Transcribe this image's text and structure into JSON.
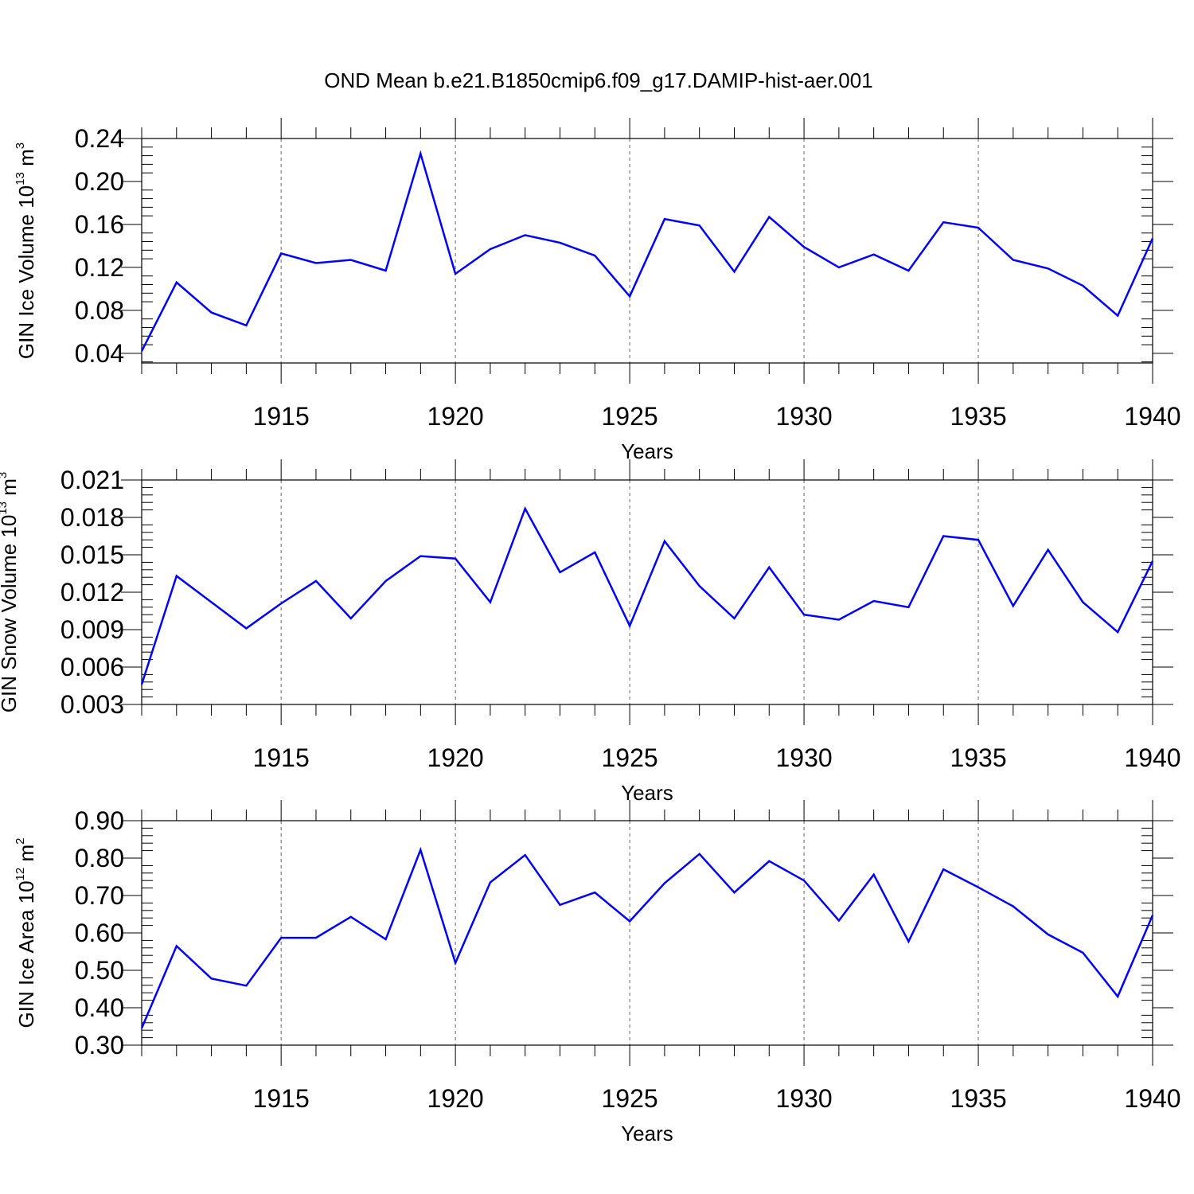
{
  "title": "OND Mean b.e21.B1850cmip6.f09_g17.DAMIP-hist-aer.001",
  "line_color": "#0000ff",
  "chart_data": [
    {
      "type": "line",
      "ylabel": {
        "base": "GIN Ice Volume 10",
        "exp": "13",
        "unit": " m",
        "unit_exp": "3"
      },
      "xlabel": "Years",
      "xlim": [
        1911,
        1940
      ],
      "ylim": [
        0.031,
        0.24
      ],
      "yticks": [
        0.04,
        0.08,
        0.12,
        0.16,
        0.2,
        0.24
      ],
      "ytick_labels": [
        "0.04",
        "0.08",
        "0.12",
        "0.16",
        "0.20",
        "0.24"
      ],
      "xticks": [
        1915,
        1920,
        1925,
        1930,
        1935,
        1940
      ],
      "xtick_labels": [
        "1915",
        "1920",
        "1925",
        "1930",
        "1935",
        "1940"
      ],
      "grid": "vertical dashed at major x ticks",
      "x": [
        1911,
        1912,
        1913,
        1914,
        1915,
        1916,
        1917,
        1918,
        1919,
        1920,
        1921,
        1922,
        1923,
        1924,
        1925,
        1926,
        1927,
        1928,
        1929,
        1930,
        1931,
        1932,
        1933,
        1934,
        1935,
        1936,
        1937,
        1938,
        1939,
        1940
      ],
      "values": [
        0.042,
        0.106,
        0.078,
        0.066,
        0.133,
        0.124,
        0.127,
        0.117,
        0.226,
        0.114,
        0.137,
        0.15,
        0.143,
        0.131,
        0.093,
        0.165,
        0.159,
        0.116,
        0.167,
        0.139,
        0.12,
        0.132,
        0.117,
        0.162,
        0.157,
        0.127,
        0.119,
        0.103,
        0.075,
        0.147
      ]
    },
    {
      "type": "line",
      "ylabel": {
        "base": "GIN Snow Volume 10",
        "exp": "13",
        "unit": " m",
        "unit_exp": "3"
      },
      "xlabel": "Years",
      "xlim": [
        1911,
        1940
      ],
      "ylim": [
        0.003,
        0.021
      ],
      "yticks": [
        0.003,
        0.006,
        0.009,
        0.012,
        0.015,
        0.018,
        0.021
      ],
      "ytick_labels": [
        "0.003",
        "0.006",
        "0.009",
        "0.012",
        "0.015",
        "0.018",
        "0.021"
      ],
      "xticks": [
        1915,
        1920,
        1925,
        1930,
        1935,
        1940
      ],
      "xtick_labels": [
        "1915",
        "1920",
        "1925",
        "1930",
        "1935",
        "1940"
      ],
      "grid": "vertical dashed at major x ticks",
      "x": [
        1911,
        1912,
        1913,
        1914,
        1915,
        1916,
        1917,
        1918,
        1919,
        1920,
        1921,
        1922,
        1923,
        1924,
        1925,
        1926,
        1927,
        1928,
        1929,
        1930,
        1931,
        1932,
        1933,
        1934,
        1935,
        1936,
        1937,
        1938,
        1939,
        1940
      ],
      "values": [
        0.0046,
        0.0133,
        0.0112,
        0.0091,
        0.0111,
        0.0129,
        0.0099,
        0.0129,
        0.0149,
        0.0147,
        0.0112,
        0.0187,
        0.0136,
        0.0152,
        0.0093,
        0.0161,
        0.0125,
        0.0099,
        0.014,
        0.0102,
        0.0098,
        0.0113,
        0.0108,
        0.0165,
        0.0162,
        0.0109,
        0.0154,
        0.0112,
        0.0088,
        0.0145
      ]
    },
    {
      "type": "line",
      "ylabel": {
        "base": "GIN Ice Area 10",
        "exp": "12",
        "unit": " m",
        "unit_exp": "2"
      },
      "xlabel": "Years",
      "xlim": [
        1911,
        1940
      ],
      "ylim": [
        0.3,
        0.9
      ],
      "yticks": [
        0.3,
        0.4,
        0.5,
        0.6,
        0.7,
        0.8,
        0.9
      ],
      "ytick_labels": [
        "0.30",
        "0.40",
        "0.50",
        "0.60",
        "0.70",
        "0.80",
        "0.90"
      ],
      "xticks": [
        1915,
        1920,
        1925,
        1930,
        1935,
        1940
      ],
      "xtick_labels": [
        "1915",
        "1920",
        "1925",
        "1930",
        "1935",
        "1940"
      ],
      "grid": "vertical dashed at major x ticks",
      "x": [
        1911,
        1912,
        1913,
        1914,
        1915,
        1916,
        1917,
        1918,
        1919,
        1920,
        1921,
        1922,
        1923,
        1924,
        1925,
        1926,
        1927,
        1928,
        1929,
        1930,
        1931,
        1932,
        1933,
        1934,
        1935,
        1936,
        1937,
        1938,
        1939,
        1940
      ],
      "values": [
        0.345,
        0.565,
        0.478,
        0.459,
        0.587,
        0.587,
        0.643,
        0.583,
        0.822,
        0.52,
        0.735,
        0.808,
        0.675,
        0.708,
        0.631,
        0.733,
        0.811,
        0.708,
        0.792,
        0.74,
        0.633,
        0.756,
        0.577,
        0.77,
        0.722,
        0.671,
        0.596,
        0.547,
        0.43,
        0.647
      ]
    }
  ]
}
